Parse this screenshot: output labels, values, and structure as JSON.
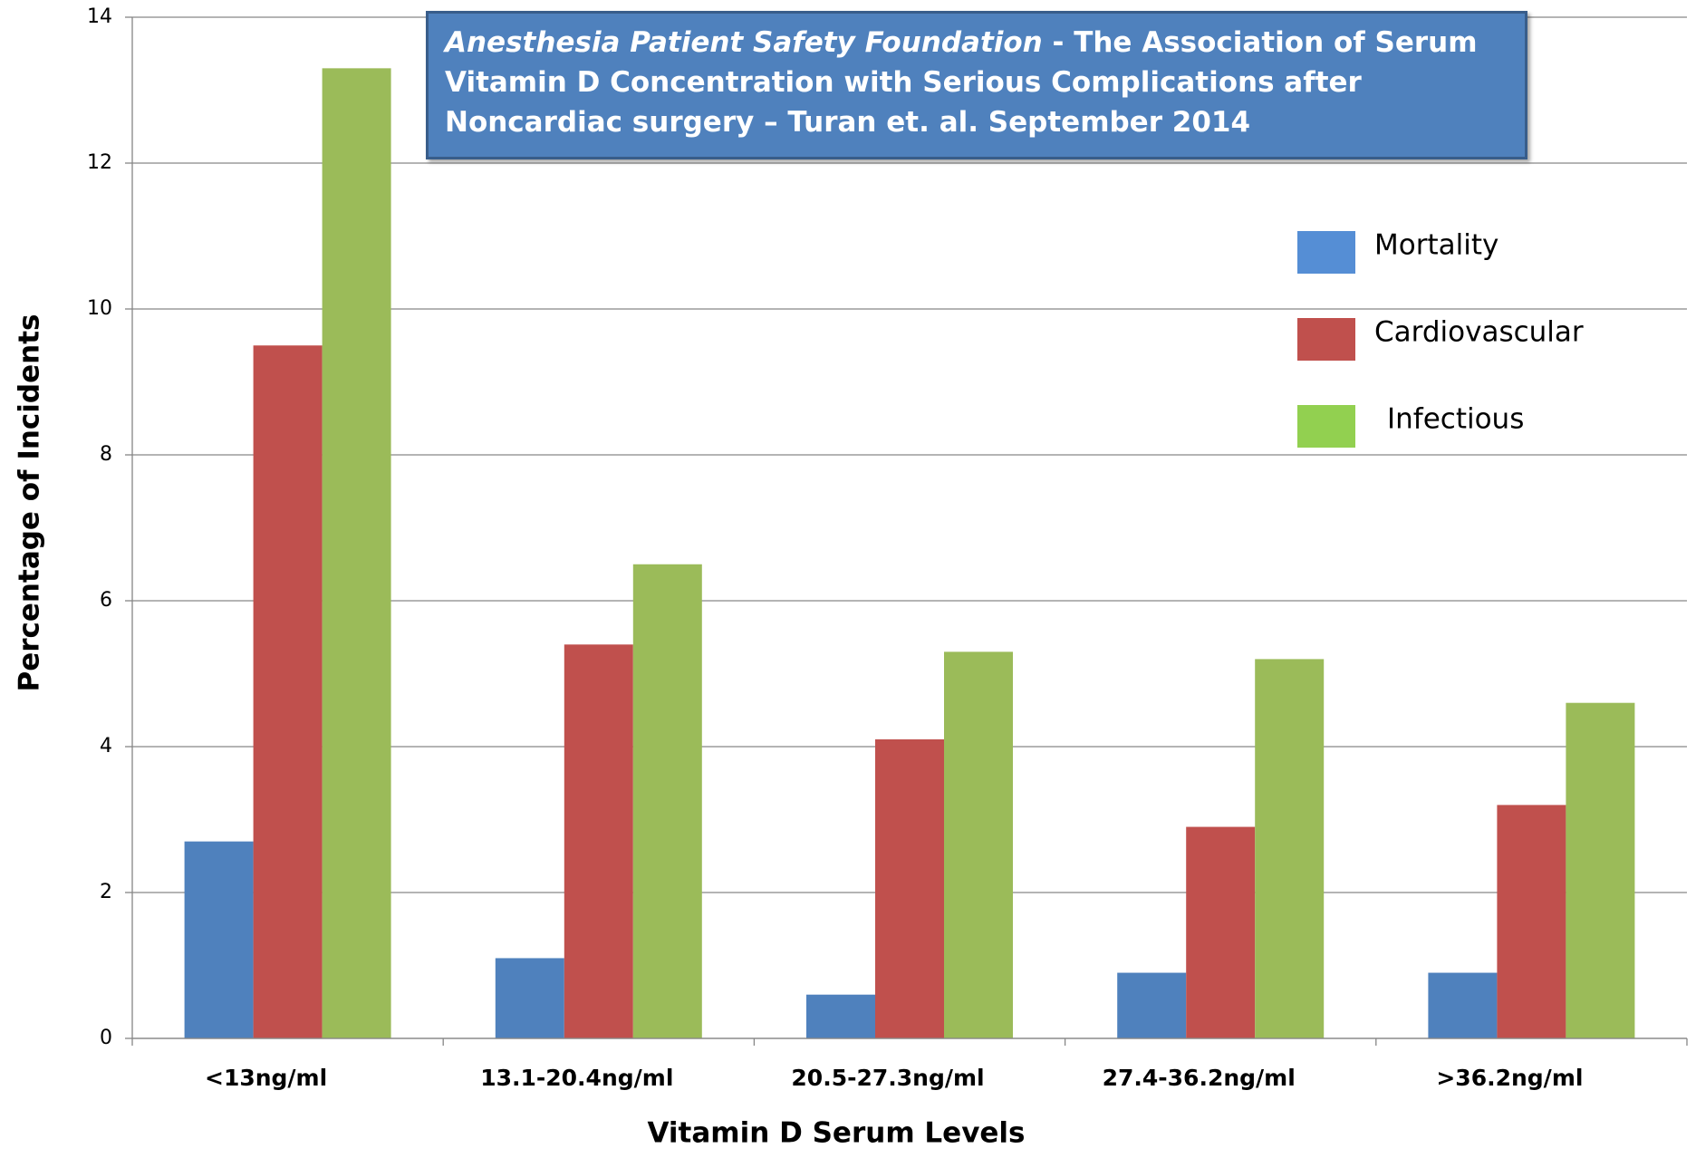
{
  "chart_data": {
    "type": "bar",
    "title_source": "Anesthesia Patient Safety Foundation",
    "title": " - The Association of Serum Vitamin D Concentration with Serious Complications after Noncardiac surgery – Turan et. al.  September 2014",
    "x_label": "Vitamin D Serum Levels",
    "y_label": "Percentage of Incidents",
    "categories": [
      "<13ng/ml",
      "13.1-20.4ng/ml",
      "20.5-27.3ng/ml",
      "27.4-36.2ng/ml",
      ">36.2ng/ml"
    ],
    "series": [
      {
        "name": "Mortality",
        "color": "#4f81bd",
        "legend_color": "#558ed5",
        "values": [
          2.7,
          1.1,
          0.6,
          0.9,
          0.9
        ]
      },
      {
        "name": "Cardiovascular",
        "color": "#c0504d",
        "legend_color": "#c0504d",
        "values": [
          9.5,
          5.4,
          4.1,
          2.9,
          3.2
        ]
      },
      {
        "name": "Infectious",
        "color": "#9bbb59",
        "legend_color": "#92d050",
        "values": [
          13.3,
          6.5,
          5.3,
          5.2,
          4.6
        ]
      }
    ],
    "ylim": [
      0,
      14
    ],
    "yticks": [
      0,
      2,
      4,
      6,
      8,
      10,
      12,
      14
    ],
    "grid": true
  }
}
